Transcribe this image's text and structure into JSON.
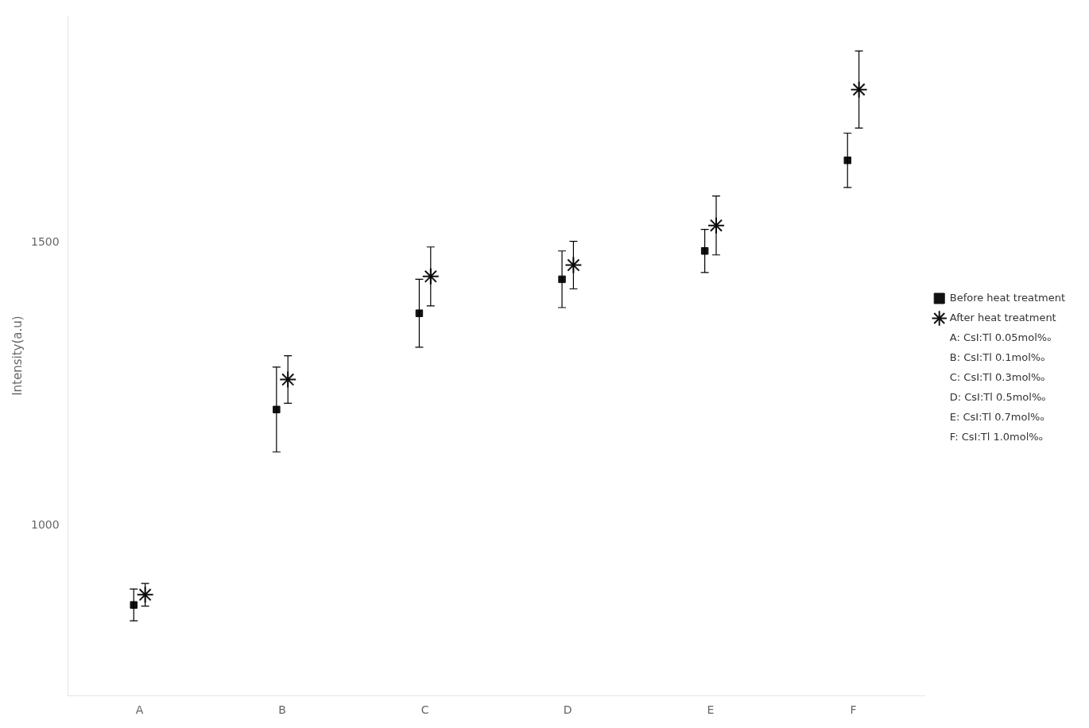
{
  "chart_data": {
    "type": "scatter",
    "categories": [
      "A",
      "B",
      "C",
      "D",
      "E",
      "F"
    ],
    "series": [
      {
        "name": "Before heat treatment",
        "color": "#111111",
        "marker": "square",
        "values": [
          860,
          1205,
          1375,
          1435,
          1485,
          1645
        ],
        "errors": [
          28,
          75,
          60,
          50,
          38,
          48
        ]
      },
      {
        "name": "After heat treatment",
        "color": "#111111",
        "marker": "star",
        "values": [
          878,
          1258,
          1440,
          1460,
          1530,
          1770
        ],
        "errors": [
          20,
          42,
          52,
          42,
          52,
          68
        ]
      }
    ],
    "annotations": [
      "A: CsI:Tl 0.05mol%ₒ",
      "B: CsI:Tl 0.1mol%ₒ",
      "C: CsI:Tl 0.3mol%ₒ",
      "D: CsI:Tl 0.5mol%ₒ",
      "E: CsI:Tl 0.7mol%ₒ",
      "F: CsI:Tl 1.0mol%ₒ"
    ],
    "ylabel": "Intensity(a.u)",
    "ylim": [
      700,
      1900
    ],
    "yticks": [
      1000,
      1500
    ],
    "grid": false,
    "legend": "right"
  }
}
